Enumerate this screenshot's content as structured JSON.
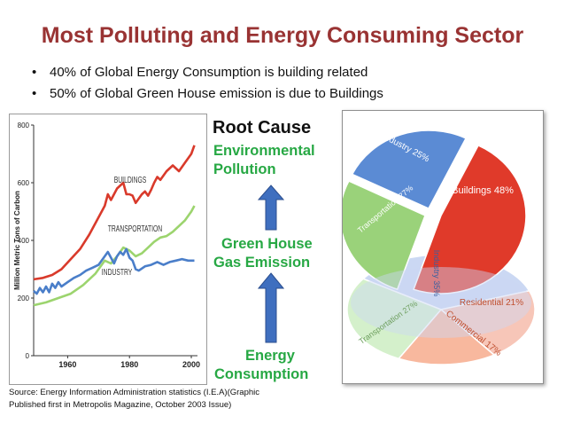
{
  "title": "Most Polluting and Energy Consuming Sector",
  "bullets": [
    "40% of Global Energy Consumption is building related",
    "50% of Global Green House emission is due to Buildings"
  ],
  "bullet_symbol": "•",
  "flow": {
    "root_cause": "Root Cause",
    "environmental_pollution": [
      "Environmental",
      "Pollution"
    ],
    "green_house_gas": [
      "Green House",
      "Gas Emission"
    ],
    "energy_consumption": [
      "Energy",
      "Consumption"
    ],
    "arrow_color": "#3f6fbf"
  },
  "source": [
    "Source:  Energy Information Administration statistics (I.E.A)(Graphic",
    "Published first in Metropolis Magazine, October 2003 Issue)"
  ],
  "chart_data": [
    {
      "type": "line",
      "title": "",
      "xlabel": "",
      "ylabel": "Million Metric Tons of Carbon",
      "x_ticks": [
        "1960",
        "1980",
        "2000"
      ],
      "y_ticks": [
        "0",
        "200",
        "400",
        "600",
        "800"
      ],
      "xlim": [
        1949,
        2002
      ],
      "ylim": [
        0,
        800
      ],
      "series": [
        {
          "name": "BUILDINGS",
          "color": "#d93a2b",
          "x": [
            1949,
            1952,
            1955,
            1958,
            1961,
            1964,
            1967,
            1970,
            1972,
            1973,
            1974,
            1976,
            1978,
            1979,
            1980,
            1981,
            1982,
            1983,
            1984,
            1985,
            1986,
            1987,
            1988,
            1989,
            1990,
            1992,
            1994,
            1996,
            1998,
            2000,
            2001
          ],
          "values": [
            265,
            270,
            280,
            300,
            335,
            370,
            420,
            480,
            520,
            560,
            540,
            580,
            600,
            560,
            560,
            555,
            530,
            545,
            560,
            570,
            555,
            575,
            600,
            620,
            610,
            640,
            660,
            640,
            670,
            700,
            730
          ]
        },
        {
          "name": "TRANSPORTATION",
          "color": "#9cd46e",
          "x": [
            1949,
            1953,
            1957,
            1961,
            1965,
            1969,
            1972,
            1974,
            1976,
            1978,
            1980,
            1982,
            1984,
            1986,
            1988,
            1990,
            1992,
            1994,
            1996,
            1998,
            2000,
            2001
          ],
          "values": [
            175,
            185,
            200,
            215,
            245,
            285,
            330,
            320,
            345,
            375,
            365,
            345,
            355,
            375,
            395,
            410,
            415,
            430,
            450,
            470,
            500,
            520
          ]
        },
        {
          "name": "INDUSTRY",
          "color": "#4a7ec9",
          "x": [
            1949,
            1950,
            1951,
            1952,
            1953,
            1954,
            1955,
            1956,
            1957,
            1958,
            1960,
            1962,
            1964,
            1966,
            1968,
            1970,
            1972,
            1973,
            1974,
            1975,
            1976,
            1977,
            1978,
            1979,
            1980,
            1981,
            1982,
            1983,
            1985,
            1987,
            1989,
            1991,
            1993,
            1995,
            1997,
            1999,
            2001
          ],
          "values": [
            225,
            215,
            235,
            220,
            240,
            220,
            250,
            235,
            255,
            240,
            255,
            270,
            280,
            295,
            305,
            315,
            345,
            360,
            340,
            320,
            345,
            360,
            350,
            370,
            340,
            330,
            300,
            295,
            310,
            315,
            325,
            315,
            325,
            330,
            335,
            330,
            330
          ]
        }
      ]
    },
    {
      "type": "pie",
      "title": "",
      "labels": [
        "Industry 25%",
        "Buildings 48%",
        "Transportation 27%"
      ],
      "values": [
        25,
        48,
        27
      ],
      "colors": [
        "#5b8bd4",
        "#e03a2a",
        "#9ad27a"
      ]
    },
    {
      "type": "pie",
      "title": "",
      "labels": [
        "Industry 35%",
        "Residential 21%",
        "Commercial 17%",
        "Transportation 27%"
      ],
      "values": [
        35,
        21,
        17,
        27
      ],
      "colors": [
        "#cbd8f3",
        "#f7c6b8",
        "#f8b89e",
        "#d4f0cb"
      ]
    }
  ]
}
